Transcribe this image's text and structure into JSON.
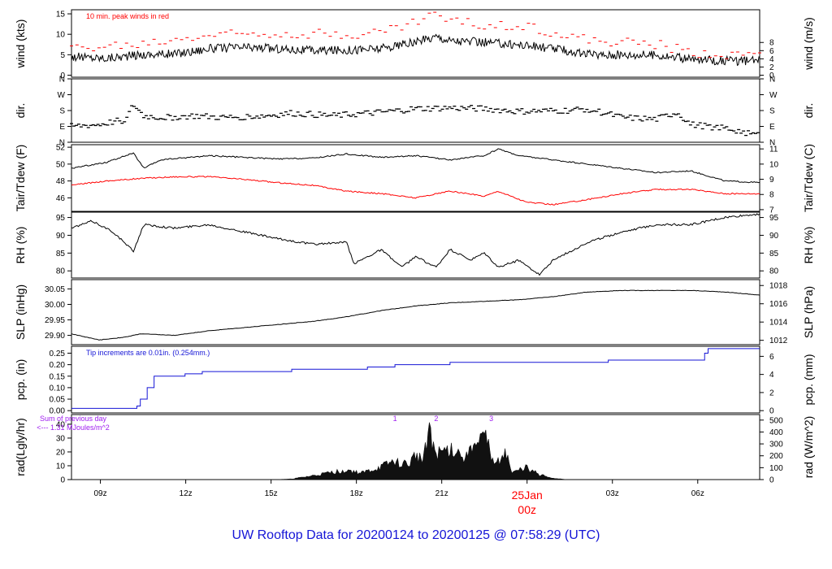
{
  "colors": {
    "black": "#000000",
    "red": "#ff0000",
    "blue": "#1515d6",
    "purple": "#a020f0"
  },
  "footer_title": "UW Rooftop Data for 20200124  to  20200125 @ 07:58:29  (UTC)",
  "chart_data": [
    {
      "type": "line",
      "key": "wind",
      "ylabel_left": "wind (kts)",
      "ylabel_right": "wind (m/s)",
      "left_ticks": [
        "0",
        "5",
        "10",
        "15"
      ],
      "left_tick_values": [
        0,
        5,
        10,
        15
      ],
      "right_ticks": [
        "0",
        "2",
        "4",
        "6",
        "8"
      ],
      "right_tick_values": [
        0,
        2,
        4,
        6,
        8
      ],
      "ylim": [
        -0.5,
        16
      ],
      "annotation": "10 min. peak winds in red",
      "series": [
        {
          "color": "#000000",
          "shape": [
            [
              0,
              4.5
            ],
            [
              0.05,
              4.2
            ],
            [
              0.1,
              5.0
            ],
            [
              0.15,
              5.2
            ],
            [
              0.2,
              6.5
            ],
            [
              0.25,
              6.8
            ],
            [
              0.3,
              6.5
            ],
            [
              0.35,
              6.0
            ],
            [
              0.4,
              6.2
            ],
            [
              0.45,
              6.5
            ],
            [
              0.5,
              8.0
            ],
            [
              0.53,
              9.5
            ],
            [
              0.55,
              8.5
            ],
            [
              0.6,
              8.0
            ],
            [
              0.65,
              7.5
            ],
            [
              0.7,
              6.5
            ],
            [
              0.75,
              5.0
            ],
            [
              0.8,
              5.0
            ],
            [
              0.85,
              5.0
            ],
            [
              0.9,
              3.8
            ],
            [
              0.95,
              3.5
            ],
            [
              1.0,
              3.5
            ]
          ]
        },
        {
          "color": "#ff0000",
          "shape": [
            [
              0,
              6.5
            ],
            [
              0.1,
              7.5
            ],
            [
              0.2,
              10.0
            ],
            [
              0.3,
              10.5
            ],
            [
              0.4,
              10.0
            ],
            [
              0.45,
              10.5
            ],
            [
              0.5,
              13.0
            ],
            [
              0.52,
              15.0
            ],
            [
              0.55,
              13.5
            ],
            [
              0.6,
              12.0
            ],
            [
              0.65,
              12.5
            ],
            [
              0.7,
              10.5
            ],
            [
              0.75,
              8.5
            ],
            [
              0.85,
              7.5
            ],
            [
              0.9,
              5.5
            ],
            [
              1.0,
              5.0
            ]
          ]
        }
      ]
    },
    {
      "type": "line",
      "key": "dir",
      "ylabel_left": "dir.",
      "ylabel_right": "dir.",
      "left_ticks": [
        "N",
        "E",
        "S",
        "W",
        "N"
      ],
      "left_tick_values": [
        0,
        90,
        180,
        270,
        360
      ],
      "right_ticks": [
        "N",
        "E",
        "S",
        "W",
        "N"
      ],
      "right_tick_values": [
        0,
        90,
        180,
        270,
        360
      ],
      "ylim": [
        0,
        360
      ],
      "series": [
        {
          "color": "#000000",
          "shape": [
            [
              0,
              90
            ],
            [
              0.04,
              100
            ],
            [
              0.08,
              130
            ],
            [
              0.09,
              215
            ],
            [
              0.105,
              150
            ],
            [
              0.13,
              140
            ],
            [
              0.18,
              150
            ],
            [
              0.22,
              140
            ],
            [
              0.28,
              150
            ],
            [
              0.32,
              165
            ],
            [
              0.38,
              150
            ],
            [
              0.45,
              170
            ],
            [
              0.5,
              190
            ],
            [
              0.55,
              195
            ],
            [
              0.6,
              190
            ],
            [
              0.65,
              175
            ],
            [
              0.72,
              180
            ],
            [
              0.75,
              190
            ],
            [
              0.8,
              140
            ],
            [
              0.85,
              130
            ],
            [
              0.88,
              170
            ],
            [
              0.9,
              100
            ],
            [
              0.95,
              80
            ],
            [
              1.0,
              40
            ]
          ]
        }
      ]
    },
    {
      "type": "line",
      "key": "temp",
      "ylabel_left": "Tair/Tdew (F)",
      "ylabel_right": "Tair/Tdew (C)",
      "left_ticks": [
        "46",
        "48",
        "50",
        "52"
      ],
      "left_tick_values": [
        46,
        48,
        50,
        52
      ],
      "right_ticks": [
        "7",
        "8",
        "9",
        "10",
        "11"
      ],
      "right_tick_values": [
        44.6,
        46.4,
        48.2,
        50.0,
        51.8
      ],
      "ylim": [
        44.4,
        52.3
      ],
      "series": [
        {
          "color": "#000000",
          "shape": [
            [
              0,
              49.5
            ],
            [
              0.05,
              50.2
            ],
            [
              0.09,
              51.3
            ],
            [
              0.105,
              49.5
            ],
            [
              0.13,
              50.5
            ],
            [
              0.2,
              51.0
            ],
            [
              0.25,
              50.8
            ],
            [
              0.3,
              50.6
            ],
            [
              0.35,
              50.7
            ],
            [
              0.4,
              51.2
            ],
            [
              0.45,
              50.8
            ],
            [
              0.5,
              51.0
            ],
            [
              0.55,
              50.5
            ],
            [
              0.6,
              51.0
            ],
            [
              0.62,
              51.8
            ],
            [
              0.65,
              51.0
            ],
            [
              0.7,
              50.5
            ],
            [
              0.75,
              50.0
            ],
            [
              0.8,
              49.5
            ],
            [
              0.85,
              49.0
            ],
            [
              0.9,
              49.2
            ],
            [
              0.95,
              48.0
            ],
            [
              1.0,
              47.8
            ]
          ]
        },
        {
          "color": "#ff0000",
          "shape": [
            [
              0,
              47.5
            ],
            [
              0.05,
              48.0
            ],
            [
              0.1,
              48.3
            ],
            [
              0.15,
              48.5
            ],
            [
              0.2,
              48.5
            ],
            [
              0.25,
              48.2
            ],
            [
              0.3,
              47.8
            ],
            [
              0.35,
              47.5
            ],
            [
              0.4,
              46.8
            ],
            [
              0.45,
              46.5
            ],
            [
              0.5,
              46.0
            ],
            [
              0.55,
              46.8
            ],
            [
              0.6,
              46.2
            ],
            [
              0.62,
              46.8
            ],
            [
              0.66,
              45.5
            ],
            [
              0.7,
              45.2
            ],
            [
              0.75,
              45.8
            ],
            [
              0.8,
              46.5
            ],
            [
              0.85,
              47.0
            ],
            [
              0.9,
              47.0
            ],
            [
              0.95,
              46.5
            ],
            [
              1.0,
              46.5
            ]
          ]
        }
      ]
    },
    {
      "type": "line",
      "key": "rh",
      "ylabel_left": "RH (%)",
      "ylabel_right": "RH (%)",
      "left_ticks": [
        "80",
        "85",
        "90",
        "95"
      ],
      "left_tick_values": [
        80,
        85,
        90,
        95
      ],
      "right_ticks": [
        "80",
        "85",
        "90",
        "95"
      ],
      "right_tick_values": [
        80,
        85,
        90,
        95
      ],
      "ylim": [
        78,
        96.5
      ],
      "series": [
        {
          "color": "#000000",
          "shape": [
            [
              0,
              92
            ],
            [
              0.03,
              94
            ],
            [
              0.06,
              91
            ],
            [
              0.09,
              85.5
            ],
            [
              0.105,
              93
            ],
            [
              0.15,
              92
            ],
            [
              0.2,
              93
            ],
            [
              0.25,
              91
            ],
            [
              0.3,
              89
            ],
            [
              0.35,
              87.5
            ],
            [
              0.4,
              88
            ],
            [
              0.41,
              82
            ],
            [
              0.45,
              86
            ],
            [
              0.48,
              81
            ],
            [
              0.5,
              84
            ],
            [
              0.53,
              81
            ],
            [
              0.55,
              86
            ],
            [
              0.58,
              83
            ],
            [
              0.6,
              85
            ],
            [
              0.62,
              81
            ],
            [
              0.65,
              83
            ],
            [
              0.68,
              79
            ],
            [
              0.7,
              83
            ],
            [
              0.75,
              88
            ],
            [
              0.8,
              91
            ],
            [
              0.85,
              93
            ],
            [
              0.9,
              93
            ],
            [
              0.95,
              95
            ],
            [
              1.0,
              96
            ]
          ]
        }
      ]
    },
    {
      "type": "line",
      "key": "slp",
      "ylabel_left": "SLP (inHg)",
      "ylabel_right": "SLP (hPa)",
      "left_ticks": [
        "29.90",
        "29.95",
        "30.00",
        "30.05"
      ],
      "left_tick_values": [
        29.9,
        29.95,
        30.0,
        30.05
      ],
      "right_ticks": [
        "1012",
        "1014",
        "1016",
        "1018"
      ],
      "right_tick_values": [
        29.884,
        29.943,
        30.002,
        30.061
      ],
      "ylim": [
        29.87,
        30.08
      ],
      "series": [
        {
          "color": "#000000",
          "shape": [
            [
              0,
              29.905
            ],
            [
              0.04,
              29.885
            ],
            [
              0.08,
              29.895
            ],
            [
              0.1,
              29.905
            ],
            [
              0.15,
              29.9
            ],
            [
              0.2,
              29.915
            ],
            [
              0.25,
              29.925
            ],
            [
              0.3,
              29.935
            ],
            [
              0.35,
              29.945
            ],
            [
              0.4,
              29.96
            ],
            [
              0.45,
              29.98
            ],
            [
              0.5,
              29.995
            ],
            [
              0.55,
              30.005
            ],
            [
              0.6,
              30.01
            ],
            [
              0.65,
              30.015
            ],
            [
              0.7,
              30.025
            ],
            [
              0.75,
              30.04
            ],
            [
              0.8,
              30.045
            ],
            [
              0.85,
              30.045
            ],
            [
              0.9,
              30.045
            ],
            [
              0.95,
              30.04
            ],
            [
              1.0,
              30.03
            ]
          ]
        }
      ]
    },
    {
      "type": "line",
      "key": "pcp",
      "ylabel_left": "pcp. (in)",
      "ylabel_right": "pcp. (mm)",
      "left_ticks": [
        "0.00",
        "0.05",
        "0.10",
        "0.15",
        "0.20",
        "0.25"
      ],
      "left_tick_values": [
        0,
        0.05,
        0.1,
        0.15,
        0.2,
        0.25
      ],
      "right_ticks": [
        "0",
        "2",
        "4",
        "6"
      ],
      "right_tick_values": [
        0,
        0.0787,
        0.1575,
        0.2362
      ],
      "ylim": [
        -0.01,
        0.28
      ],
      "annotation": "Tip increments are 0.01in. (0.254mm.)",
      "series": [
        {
          "color": "#1515d6",
          "step": true,
          "shape": [
            [
              0,
              0.01
            ],
            [
              0.09,
              0.01
            ],
            [
              0.095,
              0.02
            ],
            [
              0.1,
              0.05
            ],
            [
              0.11,
              0.1
            ],
            [
              0.12,
              0.15
            ],
            [
              0.165,
              0.16
            ],
            [
              0.19,
              0.17
            ],
            [
              0.32,
              0.18
            ],
            [
              0.43,
              0.19
            ],
            [
              0.47,
              0.2
            ],
            [
              0.55,
              0.21
            ],
            [
              0.78,
              0.22
            ],
            [
              0.92,
              0.23
            ],
            [
              0.92,
              0.25
            ],
            [
              0.925,
              0.27
            ],
            [
              1.0,
              0.27
            ]
          ]
        }
      ]
    },
    {
      "type": "area",
      "key": "rad",
      "ylabel_left": "rad(Lgly/hr)",
      "ylabel_right": "rad (W/m^2)",
      "left_ticks": [
        "0",
        "10",
        "20",
        "30",
        "40"
      ],
      "left_tick_values": [
        0,
        10,
        20,
        30,
        40
      ],
      "right_ticks": [
        "0",
        "100",
        "200",
        "300",
        "400",
        "500"
      ],
      "right_tick_values": [
        0,
        8.6,
        17.2,
        25.8,
        34.4,
        43.0
      ],
      "ylim": [
        0,
        47
      ],
      "annotation_title": "Sum of previous day",
      "annotation_value": "<--- 1.31 MJoules/m^2",
      "markers": [
        {
          "label": "1",
          "x": 0.47
        },
        {
          "label": "2",
          "x": 0.53
        },
        {
          "label": "3",
          "x": 0.61
        }
      ],
      "series": [
        {
          "color": "#000000",
          "shape": [
            [
              0,
              0
            ],
            [
              0.3,
              0
            ],
            [
              0.32,
              0.5
            ],
            [
              0.35,
              3
            ],
            [
              0.38,
              6
            ],
            [
              0.4,
              8
            ],
            [
              0.42,
              5
            ],
            [
              0.45,
              10
            ],
            [
              0.47,
              15
            ],
            [
              0.49,
              12
            ],
            [
              0.5,
              20
            ],
            [
              0.51,
              15
            ],
            [
              0.52,
              45
            ],
            [
              0.53,
              20
            ],
            [
              0.55,
              25
            ],
            [
              0.57,
              20
            ],
            [
              0.58,
              30
            ],
            [
              0.59,
              25
            ],
            [
              0.6,
              35
            ],
            [
              0.61,
              20
            ],
            [
              0.62,
              15
            ],
            [
              0.63,
              25
            ],
            [
              0.64,
              5
            ],
            [
              0.66,
              10
            ],
            [
              0.68,
              4
            ],
            [
              0.7,
              1
            ],
            [
              0.72,
              0
            ],
            [
              1.0,
              0
            ]
          ]
        }
      ]
    }
  ],
  "x_axis": {
    "ticks": [
      "09z",
      "12z",
      "15z",
      "18z",
      "21z",
      "00z",
      "03z",
      "06z"
    ],
    "tick_positions": [
      0.042,
      0.166,
      0.29,
      0.414,
      0.538,
      0.662,
      0.786,
      0.91
    ],
    "date_label": "25Jan",
    "date_index": 5
  }
}
